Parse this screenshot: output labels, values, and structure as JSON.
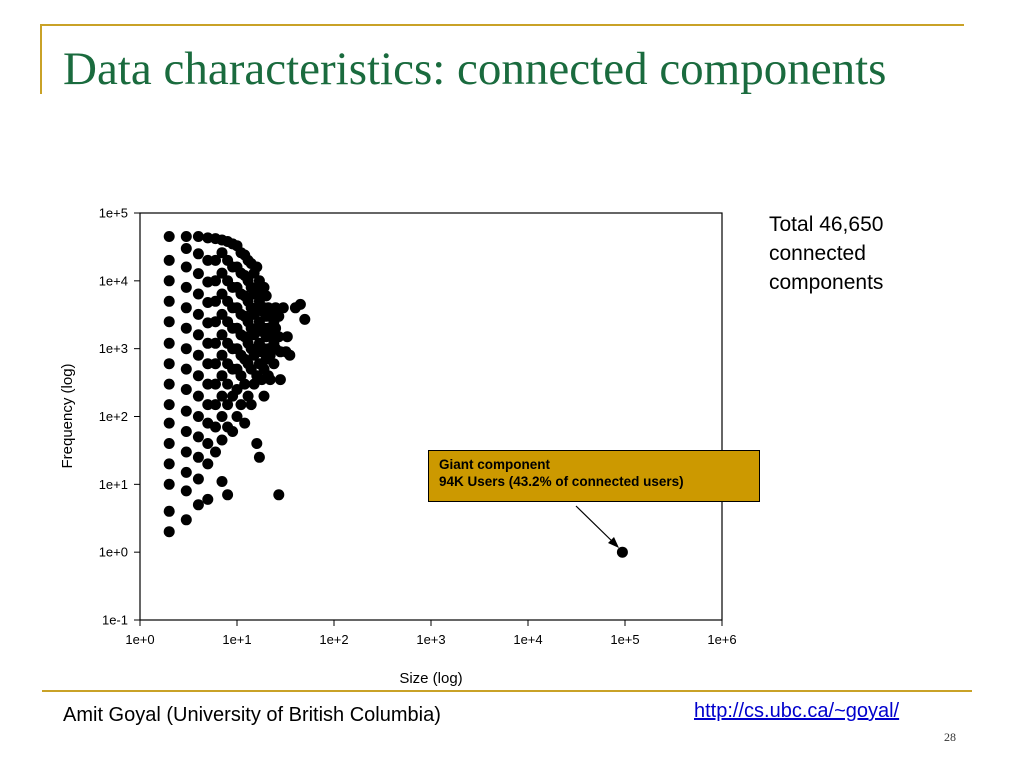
{
  "slide": {
    "title": "Data characteristics: connected components",
    "note": [
      "Total 46,650",
      "connected",
      "components"
    ],
    "author": "Amit Goyal (University of British Columbia)",
    "url": "http://cs.ubc.ca/~goyal/",
    "page_number": "28",
    "accent_color": "#c9a227",
    "title_color": "#1a6b3e"
  },
  "callout": {
    "line1": "Giant component",
    "line2": "94K Users (43.2% of connected users)",
    "color": "#cc9900"
  },
  "chart_data": {
    "type": "scatter",
    "xlabel": "Size (log)",
    "ylabel": "Frequency (log)",
    "x_scale": "log",
    "y_scale": "log",
    "xlim": [
      1,
      1000000
    ],
    "ylim": [
      0.1,
      100000
    ],
    "x_ticks": [
      "1e+0",
      "1e+1",
      "1e+2",
      "1e+3",
      "1e+4",
      "1e+5",
      "1e+6"
    ],
    "y_ticks": [
      "1e-1",
      "1e+0",
      "1e+1",
      "1e+2",
      "1e+3",
      "1e+4",
      "1e+5"
    ],
    "grid": false,
    "marker_color": "#000000",
    "points": [
      [
        2,
        2
      ],
      [
        2,
        4
      ],
      [
        2,
        10
      ],
      [
        2,
        20
      ],
      [
        2,
        40
      ],
      [
        2,
        80
      ],
      [
        2,
        150
      ],
      [
        2,
        300
      ],
      [
        2,
        600
      ],
      [
        2,
        1200
      ],
      [
        2,
        2500
      ],
      [
        2,
        5000
      ],
      [
        2,
        10000
      ],
      [
        2,
        20000
      ],
      [
        2,
        45000
      ],
      [
        3,
        3
      ],
      [
        3,
        8
      ],
      [
        3,
        15
      ],
      [
        3,
        30
      ],
      [
        3,
        60
      ],
      [
        3,
        120
      ],
      [
        3,
        250
      ],
      [
        3,
        500
      ],
      [
        3,
        1000
      ],
      [
        3,
        2000
      ],
      [
        3,
        4000
      ],
      [
        3,
        8000
      ],
      [
        3,
        16000
      ],
      [
        3,
        30000
      ],
      [
        3,
        45000
      ],
      [
        4,
        5
      ],
      [
        4,
        12
      ],
      [
        4,
        25
      ],
      [
        4,
        50
      ],
      [
        4,
        100
      ],
      [
        4,
        200
      ],
      [
        4,
        400
      ],
      [
        4,
        800
      ],
      [
        4,
        1600
      ],
      [
        4,
        3200
      ],
      [
        4,
        6400
      ],
      [
        4,
        12800
      ],
      [
        4,
        25000
      ],
      [
        4,
        45000
      ],
      [
        5,
        6
      ],
      [
        5,
        20
      ],
      [
        5,
        40
      ],
      [
        5,
        80
      ],
      [
        5,
        150
      ],
      [
        5,
        300
      ],
      [
        5,
        600
      ],
      [
        5,
        1200
      ],
      [
        5,
        2400
      ],
      [
        5,
        4800
      ],
      [
        5,
        9600
      ],
      [
        5,
        20000
      ],
      [
        5,
        43000
      ],
      [
        6,
        30
      ],
      [
        6,
        70
      ],
      [
        6,
        150
      ],
      [
        6,
        300
      ],
      [
        6,
        600
      ],
      [
        6,
        1200
      ],
      [
        6,
        2500
      ],
      [
        6,
        5000
      ],
      [
        6,
        10000
      ],
      [
        6,
        20000
      ],
      [
        6,
        42000
      ],
      [
        7,
        11
      ],
      [
        7,
        45
      ],
      [
        7,
        100
      ],
      [
        7,
        200
      ],
      [
        7,
        400
      ],
      [
        7,
        800
      ],
      [
        7,
        1600
      ],
      [
        7,
        3200
      ],
      [
        7,
        6400
      ],
      [
        7,
        13000
      ],
      [
        7,
        26000
      ],
      [
        7,
        40000
      ],
      [
        8,
        7
      ],
      [
        8,
        70
      ],
      [
        8,
        150
      ],
      [
        8,
        300
      ],
      [
        8,
        600
      ],
      [
        8,
        1200
      ],
      [
        8,
        2500
      ],
      [
        8,
        5000
      ],
      [
        8,
        10000
      ],
      [
        8,
        20000
      ],
      [
        8,
        38000
      ],
      [
        9,
        60
      ],
      [
        9,
        200
      ],
      [
        9,
        500
      ],
      [
        9,
        1000
      ],
      [
        9,
        2000
      ],
      [
        9,
        4000
      ],
      [
        9,
        8000
      ],
      [
        9,
        16000
      ],
      [
        9,
        35000
      ],
      [
        10,
        100
      ],
      [
        10,
        250
      ],
      [
        10,
        500
      ],
      [
        10,
        1000
      ],
      [
        10,
        2000
      ],
      [
        10,
        4000
      ],
      [
        10,
        8000
      ],
      [
        10,
        16000
      ],
      [
        10,
        33000
      ],
      [
        11,
        150
      ],
      [
        11,
        400
      ],
      [
        11,
        800
      ],
      [
        11,
        1600
      ],
      [
        11,
        3200
      ],
      [
        11,
        6400
      ],
      [
        11,
        13000
      ],
      [
        11,
        26000
      ],
      [
        12,
        80
      ],
      [
        12,
        300
      ],
      [
        12,
        700
      ],
      [
        12,
        1500
      ],
      [
        12,
        3000
      ],
      [
        12,
        6000
      ],
      [
        12,
        12000
      ],
      [
        12,
        24000
      ],
      [
        13,
        200
      ],
      [
        13,
        600
      ],
      [
        13,
        1200
      ],
      [
        13,
        2500
      ],
      [
        13,
        5000
      ],
      [
        13,
        10000
      ],
      [
        13,
        20000
      ],
      [
        14,
        150
      ],
      [
        14,
        500
      ],
      [
        14,
        1000
      ],
      [
        14,
        2000
      ],
      [
        14,
        4000
      ],
      [
        14,
        8000
      ],
      [
        14,
        18000
      ],
      [
        15,
        300
      ],
      [
        15,
        800
      ],
      [
        15,
        1600
      ],
      [
        15,
        3200
      ],
      [
        15,
        6400
      ],
      [
        15,
        13000
      ],
      [
        16,
        40
      ],
      [
        16,
        400
      ],
      [
        16,
        1000
      ],
      [
        16,
        2000
      ],
      [
        16,
        4000
      ],
      [
        16,
        8000
      ],
      [
        16,
        16000
      ],
      [
        17,
        25
      ],
      [
        17,
        600
      ],
      [
        17,
        1200
      ],
      [
        17,
        2500
      ],
      [
        17,
        5000
      ],
      [
        17,
        10000
      ],
      [
        18,
        350
      ],
      [
        18,
        900
      ],
      [
        18,
        1800
      ],
      [
        18,
        3600
      ],
      [
        18,
        7000
      ],
      [
        19,
        200
      ],
      [
        19,
        500
      ],
      [
        19,
        1000
      ],
      [
        19,
        2000
      ],
      [
        19,
        4000
      ],
      [
        19,
        8000
      ],
      [
        20,
        700
      ],
      [
        20,
        1500
      ],
      [
        20,
        3000
      ],
      [
        20,
        6000
      ],
      [
        21,
        400
      ],
      [
        21,
        1000
      ],
      [
        21,
        2000
      ],
      [
        21,
        4000
      ],
      [
        22,
        350
      ],
      [
        22,
        800
      ],
      [
        22,
        1600
      ],
      [
        22,
        3200
      ],
      [
        24,
        600
      ],
      [
        24,
        1200
      ],
      [
        24,
        2500
      ],
      [
        25,
        1000
      ],
      [
        25,
        2000
      ],
      [
        25,
        4000
      ],
      [
        27,
        7
      ],
      [
        27,
        1500
      ],
      [
        27,
        3000
      ],
      [
        28,
        350
      ],
      [
        28,
        900
      ],
      [
        30,
        4000
      ],
      [
        32,
        900
      ],
      [
        33,
        1500
      ],
      [
        35,
        800
      ],
      [
        40,
        4000
      ],
      [
        45,
        4500
      ],
      [
        50,
        2700
      ],
      [
        94000,
        1
      ]
    ]
  }
}
